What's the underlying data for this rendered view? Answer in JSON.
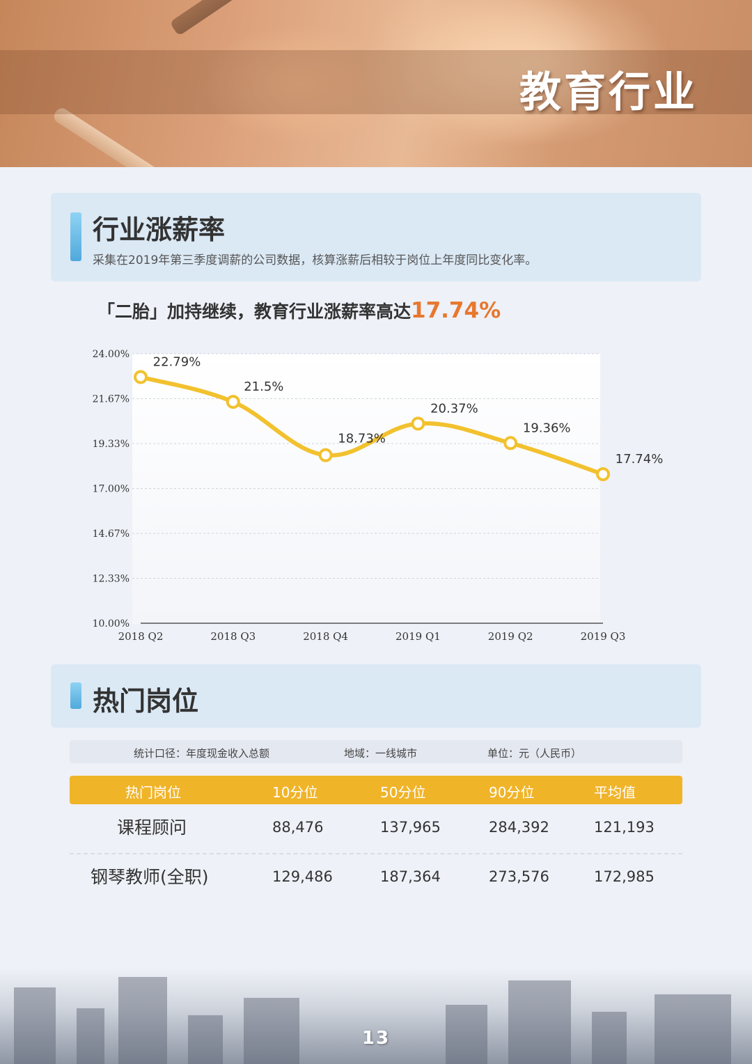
{
  "banner": {
    "title": "教育行业"
  },
  "section1": {
    "title": "行业涨薪率",
    "description": "采集在2019年第三季度调薪的公司数据，核算涨薪后相较于岗位上年度同比变化率。"
  },
  "subtitle": {
    "text": "「二胎」加持继续，教育行业涨薪率高达",
    "highlight": "17.74%"
  },
  "chart_data": {
    "type": "line",
    "categories": [
      "2018 Q2",
      "2018 Q3",
      "2018 Q4",
      "2019 Q1",
      "2019 Q2",
      "2019 Q3"
    ],
    "values": [
      22.79,
      21.5,
      18.73,
      20.37,
      19.36,
      17.74
    ],
    "data_labels": [
      "22.79%",
      "21.5%",
      "18.73%",
      "20.37%",
      "19.36%",
      "17.74%"
    ],
    "y_ticks": [
      "10.00%",
      "12.33%",
      "14.67%",
      "17.00%",
      "19.33%",
      "21.67%",
      "24.00%"
    ],
    "ylim": [
      10,
      24
    ],
    "grid": true,
    "line_color": "#f2c12e"
  },
  "section2": {
    "title": "热门岗位"
  },
  "table": {
    "notes": [
      "统计口径：年度现金收入总额",
      "地域：一线城市",
      "单位：元（人民币）"
    ],
    "headers": [
      "热门岗位",
      "10分位",
      "50分位",
      "90分位",
      "平均值"
    ],
    "rows": [
      [
        "课程顾问",
        "88,476",
        "137,965",
        "284,392",
        "121,193"
      ],
      [
        "钢琴教师(全职)",
        "129,486",
        "187,364",
        "273,576",
        "172,985"
      ]
    ],
    "header_color": "#f0b429"
  },
  "footer": {
    "page_number": "13"
  }
}
